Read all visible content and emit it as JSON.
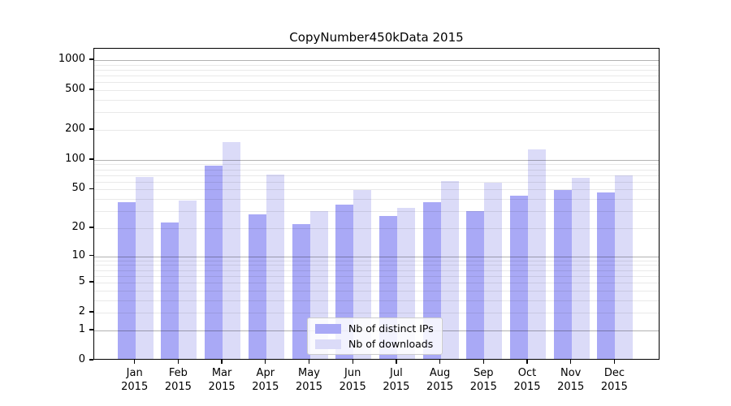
{
  "chart_data": {
    "type": "bar",
    "title": "CopyNumber450kData 2015",
    "categories": [
      "Jan",
      "Feb",
      "Mar",
      "Apr",
      "May",
      "Jun",
      "Jul",
      "Aug",
      "Sep",
      "Oct",
      "Nov",
      "Dec"
    ],
    "year_label": "2015",
    "series": [
      {
        "name": "Nb of distinct IPs",
        "color": "#a9a9f6",
        "values": [
          36,
          22,
          84,
          27,
          21,
          34,
          26,
          36,
          29,
          42,
          48,
          45
        ]
      },
      {
        "name": "Nb of downloads",
        "color": "#dbdbf8",
        "values": [
          65,
          37,
          146,
          68,
          29,
          48,
          31,
          59,
          56,
          123,
          63,
          67
        ]
      }
    ],
    "xlabel": "",
    "ylabel": "",
    "yscale": "log1p",
    "yticks": [
      0,
      1,
      2,
      5,
      10,
      20,
      50,
      100,
      200,
      500,
      1000
    ],
    "ylim": [
      0,
      1300
    ],
    "grid": "on",
    "grid_major_at_powers_of_ten": true,
    "legend": {
      "position": "lower center",
      "labels": [
        "Nb of distinct IPs",
        "Nb of downloads"
      ]
    },
    "colors": {
      "axis": "#000000",
      "background": "#ffffff",
      "grid_minor": "#e9e9e9",
      "grid_major": "#b3b3b3"
    }
  }
}
